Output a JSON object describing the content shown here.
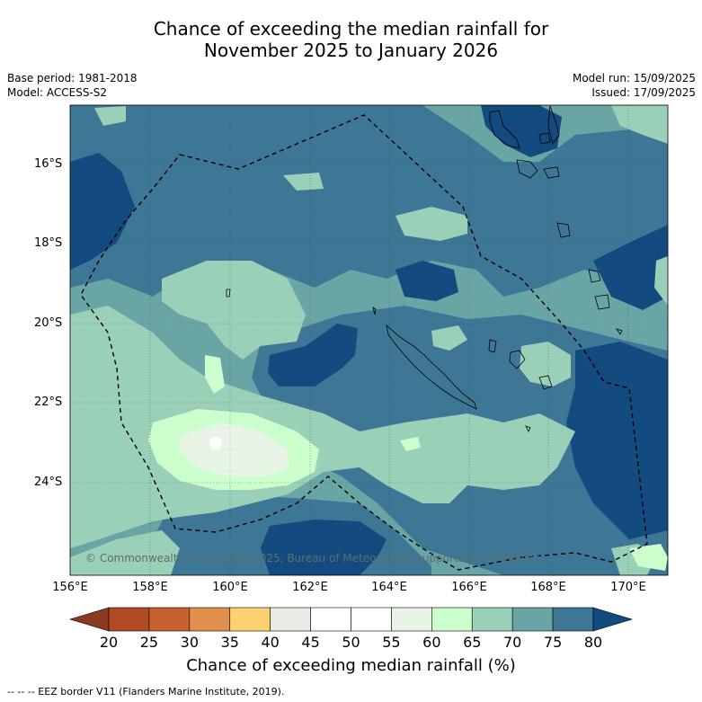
{
  "title_line1": "Chance of exceeding the median rainfall for",
  "title_line2": "November 2025 to January 2026",
  "base_period": "Base period: 1981-2018",
  "model": "Model: ACCESS-S2",
  "model_run": "Model run: 15/09/2025",
  "issued": "Issued: 17/09/2025",
  "copyright": "© Commonwealth of Australia 2025, Bureau of Meteorology, supported by COSPPac",
  "lat_labels": [
    "16°S",
    "18°S",
    "20°S",
    "22°S",
    "24°S"
  ],
  "lon_labels": [
    "156°E",
    "158°E",
    "160°E",
    "162°E",
    "164°E",
    "166°E",
    "168°E",
    "170°E"
  ],
  "colorbar": {
    "labels": [
      "20",
      "25",
      "30",
      "35",
      "40",
      "45",
      "50",
      "55",
      "60",
      "65",
      "70",
      "75",
      "80"
    ],
    "colors": [
      "#8b3a22",
      "#b04a25",
      "#c9602f",
      "#e0904a",
      "#fdd170",
      "#ebebe6",
      "#ffffff",
      "#ffffff",
      "#e8f5e6",
      "#ccfdcc",
      "#9bd0b8",
      "#6aa5a6",
      "#3e7696",
      "#134a80"
    ],
    "title": "Chance of exceeding median rainfall (%)"
  },
  "footer": "--  --  -- EEZ border V11 (Flanders Marine Institute, 2019).",
  "palette": {
    "c45_55": "#ffffff",
    "c55_60": "#e8f5e6",
    "c60_65": "#ccfdcc",
    "c65_70": "#9bd0b8",
    "c70_75": "#6aa5a6",
    "c75_80": "#3e7696",
    "c80_plus": "#134a80"
  }
}
